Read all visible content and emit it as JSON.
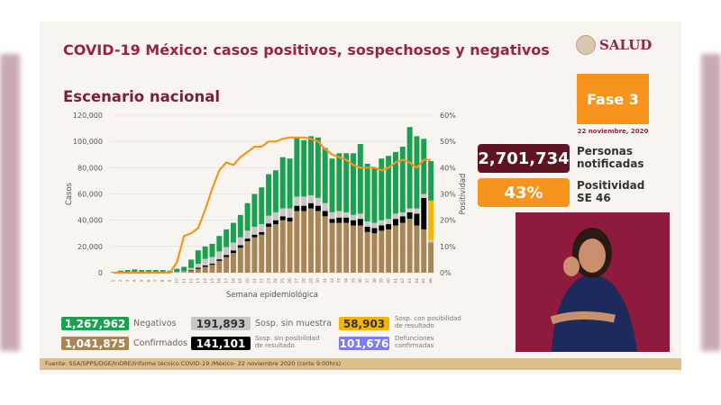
{
  "slide": {
    "title": "COVID-19 México: casos positivos, sospechosos y negativos",
    "subtitle": "Escenario nacional",
    "logo_text": "SALUD",
    "phase": "Fase 3",
    "date": "22 noviembre, 2020",
    "kpis": [
      {
        "value": "2,701,734",
        "label1": "Personas",
        "label2": "notificadas",
        "color": "#5e1423"
      },
      {
        "value": "43%",
        "label1": "Positividad",
        "label2": "SE 46",
        "color": "#f7941d"
      }
    ],
    "legend": [
      {
        "value": "1,267,962",
        "label": "Negativos",
        "color": "#1aa150"
      },
      {
        "value": "191,893",
        "label": "Sosp. sin muestra",
        "color": "#c8c6c4"
      },
      {
        "value": "58,903",
        "label1": "Sosp. con posibilidad",
        "label2": "de resultado",
        "color": "#f7b500"
      },
      {
        "value": "1,041,875",
        "label": "Confirmados",
        "color": "#a98454"
      },
      {
        "value": "141,101",
        "label1": "Sosp. sin posibilidad",
        "label2": "de resultado",
        "color": "#000000"
      },
      {
        "value": "101,676",
        "label1": "Defunciones",
        "label2": "confirmadas",
        "color": "#7b7cf2"
      }
    ],
    "footer": "Fuente: SSA/SPPS/DGE/InDRE/Informe técnico.COVID-19 /México- 22 noviembre 2020 (corte 9:00hrs)"
  },
  "chart_data": {
    "type": "bar",
    "stacked": true,
    "xlabel": "Semana epidemiológica",
    "ylabel": "Casos",
    "y2label": "Positividad",
    "ylim": [
      0,
      120000
    ],
    "y2lim": [
      0,
      60
    ],
    "yticks": [
      "0",
      "20,000",
      "40,000",
      "60,000",
      "80,000",
      "100,000",
      "120,000"
    ],
    "y2ticks": [
      "0%",
      "10%",
      "20%",
      "30%",
      "40%",
      "50%",
      "60%"
    ],
    "grid": true,
    "categories": [
      1,
      2,
      3,
      4,
      5,
      6,
      7,
      8,
      9,
      10,
      11,
      12,
      13,
      14,
      15,
      16,
      17,
      18,
      19,
      20,
      21,
      22,
      23,
      24,
      25,
      26,
      27,
      28,
      29,
      30,
      31,
      32,
      33,
      34,
      35,
      36,
      37,
      38,
      39,
      40,
      41,
      42,
      43,
      44,
      45,
      46
    ],
    "series": [
      {
        "name": "Confirmados",
        "color": "#a98454",
        "values": [
          0,
          0,
          0,
          0,
          0,
          0,
          0,
          0,
          0,
          300,
          500,
          1500,
          3000,
          4500,
          6000,
          9000,
          12000,
          15000,
          19000,
          24000,
          27000,
          29000,
          35000,
          37000,
          40000,
          39000,
          47000,
          47000,
          49000,
          47000,
          43000,
          38000,
          38000,
          38000,
          36000,
          36000,
          31000,
          30000,
          32000,
          33000,
          36000,
          38000,
          41000,
          36000,
          33000,
          23000
        ]
      },
      {
        "name": "Sosp. sin posibilidad de resultado",
        "color": "#000000",
        "values": [
          0,
          0,
          0,
          0,
          0,
          0,
          0,
          0,
          0,
          0,
          0,
          500,
          800,
          1000,
          1000,
          1200,
          1500,
          2000,
          2000,
          2000,
          2000,
          2000,
          2500,
          3000,
          3000,
          3000,
          4000,
          4000,
          4000,
          4000,
          4000,
          3000,
          4000,
          4000,
          4000,
          5000,
          4000,
          4000,
          4000,
          4000,
          5000,
          5000,
          5000,
          9000,
          24000,
          0
        ]
      },
      {
        "name": "Sosp. sin muestra",
        "color": "#c8c6c4",
        "values": [
          0,
          0,
          0,
          0,
          0,
          0,
          0,
          0,
          0,
          300,
          500,
          1500,
          3000,
          5000,
          5000,
          6000,
          6000,
          6000,
          6000,
          6000,
          6000,
          6000,
          6000,
          6000,
          6000,
          7000,
          7000,
          7000,
          6000,
          6000,
          6000,
          5000,
          5000,
          4000,
          4000,
          4000,
          4000,
          4000,
          4000,
          4000,
          4000,
          3000,
          3000,
          4000,
          3000,
          2000
        ]
      },
      {
        "name": "Sosp. con posibilidad de resultado",
        "color": "#f7b500",
        "values": [
          0,
          0,
          0,
          0,
          0,
          0,
          0,
          0,
          0,
          0,
          0,
          0,
          0,
          0,
          0,
          0,
          0,
          0,
          0,
          0,
          0,
          0,
          0,
          0,
          0,
          0,
          0,
          0,
          0,
          0,
          0,
          0,
          0,
          0,
          0,
          0,
          0,
          0,
          0,
          0,
          0,
          0,
          0,
          0,
          0,
          30000
        ]
      },
      {
        "name": "Negativos",
        "color": "#1aa150",
        "values": [
          500,
          1500,
          2000,
          2500,
          2000,
          2000,
          2000,
          2000,
          1500,
          2400,
          3500,
          6500,
          10200,
          9500,
          10000,
          11800,
          13500,
          15000,
          17000,
          21000,
          25000,
          28000,
          31500,
          32000,
          39000,
          38000,
          45000,
          43000,
          45000,
          46000,
          42000,
          41000,
          44000,
          45000,
          47000,
          53000,
          44000,
          42000,
          47000,
          48000,
          47000,
          50000,
          62000,
          55000,
          42000,
          30000
        ]
      }
    ],
    "line": {
      "name": "Positividad",
      "color": "#f7941d",
      "values": [
        0,
        0,
        0,
        0,
        0,
        0,
        0,
        0,
        0,
        4,
        14,
        15,
        17,
        24,
        32,
        39,
        42,
        41,
        44,
        46,
        48,
        48,
        50,
        50,
        51,
        51.5,
        51.5,
        51.5,
        51,
        50,
        47,
        45,
        44,
        43,
        41,
        40,
        40,
        40,
        39,
        40,
        42,
        43,
        42,
        40,
        43,
        43
      ]
    }
  }
}
